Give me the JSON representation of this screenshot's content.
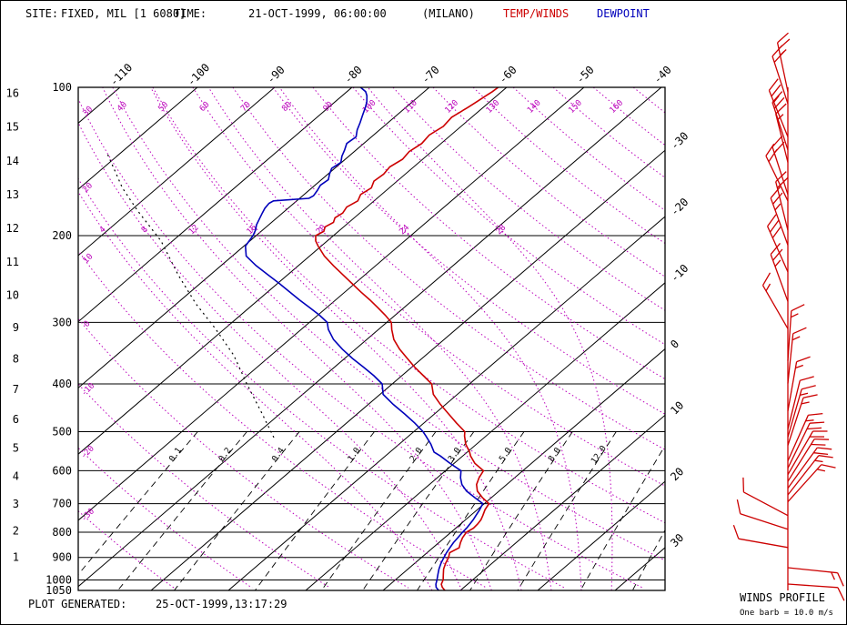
{
  "header": {
    "site_label": "SITE:",
    "site_value": "FIXED, MIL [1 6080]",
    "time_label": "TIME:",
    "time_value": "21-OCT-1999, 06:00:00",
    "station": "(MILANO)",
    "temp_legend": "TEMP/WINDS",
    "dew_legend": "DEWPOINT"
  },
  "footer": {
    "generated_label": "PLOT GENERATED:",
    "generated_value": "25-OCT-1999,13:17:29"
  },
  "wind_panel": {
    "title": "WINDS PROFILE",
    "legend": "One barb = 10.0 m/s"
  },
  "colors": {
    "temp": "#cc0000",
    "dew": "#0000bb",
    "adiabat": "#bb00bb",
    "grid": "#000000"
  },
  "chart_data": {
    "type": "skewt",
    "pressure_range": [
      100,
      1050
    ],
    "pressure_lines": [
      100,
      200,
      300,
      400,
      500,
      600,
      700,
      800,
      900,
      1000,
      1050
    ],
    "height_scale": [
      [
        16,
        102.9
      ],
      [
        15,
        120.4
      ],
      [
        14,
        141.0
      ],
      [
        13,
        165.1
      ],
      [
        12,
        193.3
      ],
      [
        11,
        226.3
      ],
      [
        10,
        264.4
      ],
      [
        9,
        307.4
      ],
      [
        8,
        356.0
      ],
      [
        7,
        410.6
      ],
      [
        6,
        471.8
      ],
      [
        5,
        540.2
      ],
      [
        4,
        616.4
      ],
      [
        3,
        701.1
      ],
      [
        2,
        795.0
      ],
      [
        1,
        898.7
      ]
    ],
    "isotherm_range": [
      -120,
      40
    ],
    "isotherm_step": 10,
    "top_temp_labels": [
      -110,
      -100,
      -90,
      -80,
      -70,
      -60,
      -50,
      -40
    ],
    "right_temp_labels": [
      -30,
      -20,
      -10,
      0,
      10,
      20,
      30
    ],
    "dry_adiabats_c": [
      -30,
      -20,
      -10,
      0,
      10,
      20,
      30,
      40,
      50,
      60,
      70,
      80,
      90,
      100,
      110,
      120,
      130,
      140,
      150,
      160,
      170
    ],
    "moist_adiabats_c": [
      4,
      8,
      12,
      16,
      20,
      24,
      28
    ],
    "mixing_ratio_lines_gkg": [
      0.1,
      0.2,
      0.4,
      1,
      2,
      3,
      5,
      8,
      12,
      20,
      30
    ],
    "mixing_ratio_labels_gkg": [
      0.1,
      0.2,
      0.4,
      1,
      2,
      3,
      5,
      8,
      12
    ],
    "temperature_profile": [
      [
        1050,
        8.0
      ],
      [
        1035,
        7.2
      ],
      [
        1020,
        6.6
      ],
      [
        1000,
        6.2
      ],
      [
        975,
        5.4
      ],
      [
        950,
        4.6
      ],
      [
        925,
        4.0
      ],
      [
        900,
        3.5
      ],
      [
        880,
        2.9
      ],
      [
        860,
        3.4
      ],
      [
        840,
        2.8
      ],
      [
        820,
        2.3
      ],
      [
        800,
        2.0
      ],
      [
        785,
        2.3
      ],
      [
        770,
        2.2
      ],
      [
        755,
        2.0
      ],
      [
        740,
        1.6
      ],
      [
        720,
        1.0
      ],
      [
        700,
        0.6
      ],
      [
        680,
        -1.2
      ],
      [
        660,
        -2.8
      ],
      [
        640,
        -3.9
      ],
      [
        620,
        -4.6
      ],
      [
        600,
        -5.1
      ],
      [
        580,
        -7.3
      ],
      [
        560,
        -9.0
      ],
      [
        550,
        -9.7
      ],
      [
        530,
        -11.4
      ],
      [
        510,
        -12.8
      ],
      [
        500,
        -13.4
      ],
      [
        480,
        -15.8
      ],
      [
        460,
        -18.2
      ],
      [
        440,
        -20.7
      ],
      [
        420,
        -23.1
      ],
      [
        400,
        -24.9
      ],
      [
        385,
        -27.2
      ],
      [
        370,
        -29.6
      ],
      [
        355,
        -31.9
      ],
      [
        340,
        -34.3
      ],
      [
        325,
        -36.5
      ],
      [
        310,
        -38.3
      ],
      [
        300,
        -39.4
      ],
      [
        290,
        -41.3
      ],
      [
        280,
        -43.4
      ],
      [
        270,
        -45.6
      ],
      [
        260,
        -48.0
      ],
      [
        250,
        -50.4
      ],
      [
        240,
        -52.9
      ],
      [
        230,
        -55.5
      ],
      [
        220,
        -58.1
      ],
      [
        210,
        -60.4
      ],
      [
        205,
        -61.5
      ],
      [
        200,
        -62.3
      ],
      [
        196,
        -61.9
      ],
      [
        192,
        -62.4
      ],
      [
        188,
        -62.0
      ],
      [
        184,
        -62.5
      ],
      [
        180,
        -62.2
      ],
      [
        175,
        -62.6
      ],
      [
        170,
        -62.1
      ],
      [
        165,
        -62.7
      ],
      [
        160,
        -62.3
      ],
      [
        155,
        -63.0
      ],
      [
        150,
        -62.8
      ],
      [
        145,
        -63.1
      ],
      [
        140,
        -62.6
      ],
      [
        135,
        -62.9
      ],
      [
        130,
        -62.5
      ],
      [
        125,
        -62.8
      ],
      [
        120,
        -62.3
      ],
      [
        115,
        -62.6
      ],
      [
        110,
        -62.0
      ],
      [
        107,
        -61.7
      ],
      [
        104,
        -61.4
      ],
      [
        102,
        -61.2
      ],
      [
        100,
        -61.1
      ]
    ],
    "dewpoint_profile": [
      [
        1050,
        7.2
      ],
      [
        1035,
        6.4
      ],
      [
        1020,
        5.9
      ],
      [
        1000,
        5.4
      ],
      [
        975,
        4.7
      ],
      [
        950,
        4.0
      ],
      [
        925,
        3.4
      ],
      [
        900,
        2.9
      ],
      [
        880,
        2.5
      ],
      [
        860,
        2.2
      ],
      [
        840,
        1.9
      ],
      [
        820,
        1.7
      ],
      [
        800,
        1.5
      ],
      [
        785,
        1.4
      ],
      [
        770,
        1.2
      ],
      [
        755,
        1.0
      ],
      [
        740,
        0.7
      ],
      [
        720,
        0.3
      ],
      [
        700,
        -0.2
      ],
      [
        680,
        -2.2
      ],
      [
        660,
        -4.2
      ],
      [
        640,
        -5.8
      ],
      [
        620,
        -7.0
      ],
      [
        600,
        -8.0
      ],
      [
        580,
        -10.5
      ],
      [
        560,
        -12.9
      ],
      [
        550,
        -14.3
      ],
      [
        530,
        -15.9
      ],
      [
        510,
        -17.8
      ],
      [
        500,
        -18.8
      ],
      [
        480,
        -21.2
      ],
      [
        460,
        -23.9
      ],
      [
        440,
        -26.8
      ],
      [
        420,
        -29.6
      ],
      [
        400,
        -31.3
      ],
      [
        385,
        -33.6
      ],
      [
        370,
        -36.2
      ],
      [
        355,
        -39.0
      ],
      [
        340,
        -41.7
      ],
      [
        325,
        -44.3
      ],
      [
        310,
        -46.5
      ],
      [
        300,
        -47.7
      ],
      [
        290,
        -49.8
      ],
      [
        280,
        -52.2
      ],
      [
        270,
        -54.7
      ],
      [
        260,
        -57.2
      ],
      [
        250,
        -59.8
      ],
      [
        240,
        -62.6
      ],
      [
        230,
        -65.5
      ],
      [
        220,
        -68.2
      ],
      [
        210,
        -69.8
      ],
      [
        200,
        -70.4
      ],
      [
        195,
        -70.9
      ],
      [
        190,
        -71.6
      ],
      [
        185,
        -72.1
      ],
      [
        180,
        -72.6
      ],
      [
        176,
        -73.0
      ],
      [
        172,
        -73.2
      ],
      [
        170,
        -73.0
      ],
      [
        168,
        -68.8
      ],
      [
        166,
        -68.6
      ],
      [
        162,
        -68.9
      ],
      [
        158,
        -69.3
      ],
      [
        154,
        -69.1
      ],
      [
        150,
        -69.8
      ],
      [
        146,
        -70.4
      ],
      [
        142,
        -70.1
      ],
      [
        138,
        -70.9
      ],
      [
        134,
        -71.5
      ],
      [
        130,
        -72.2
      ],
      [
        126,
        -72.0
      ],
      [
        122,
        -72.9
      ],
      [
        118,
        -73.6
      ],
      [
        114,
        -74.4
      ],
      [
        110,
        -75.2
      ],
      [
        107,
        -75.9
      ],
      [
        104,
        -76.8
      ],
      [
        102,
        -77.6
      ],
      [
        100,
        -78.9
      ]
    ],
    "reference_curve": [
      [
        137,
        -101.4
      ],
      [
        160,
        -94.5
      ],
      [
        178,
        -89.1
      ],
      [
        205,
        -81.5
      ],
      [
        240,
        -74.2
      ],
      [
        275,
        -67.5
      ],
      [
        309,
        -61.2
      ],
      [
        350,
        -54.8
      ],
      [
        400,
        -48.8
      ],
      [
        455,
        -42.8
      ],
      [
        515,
        -37.1
      ]
    ],
    "wind_barbs": [
      [
        102,
        -12,
        25
      ],
      [
        108,
        -18,
        20
      ],
      [
        126,
        -22,
        25
      ],
      [
        134,
        -18,
        20
      ],
      [
        142,
        -14,
        15
      ],
      [
        165,
        -18,
        20
      ],
      [
        170,
        -26,
        20
      ],
      [
        195,
        -14,
        20
      ],
      [
        209,
        -20,
        25
      ],
      [
        237,
        -24,
        30
      ],
      [
        272,
        -20,
        25
      ],
      [
        309,
        -30,
        15
      ],
      [
        359,
        4,
        15
      ],
      [
        399,
        6,
        15
      ],
      [
        454,
        10,
        15
      ],
      [
        494,
        14,
        10
      ],
      [
        513,
        16,
        15
      ],
      [
        533,
        18,
        15
      ],
      [
        573,
        24,
        15
      ],
      [
        593,
        26,
        20
      ],
      [
        611,
        30,
        20
      ],
      [
        631,
        32,
        20
      ],
      [
        651,
        36,
        20
      ],
      [
        672,
        38,
        15
      ],
      [
        694,
        42,
        15
      ],
      [
        740,
        -62,
        10
      ],
      [
        789,
        -72,
        10
      ],
      [
        859,
        -80,
        10
      ],
      [
        944,
        96,
        15
      ],
      [
        1019,
        94,
        10
      ]
    ],
    "barb_full_value_ms": 10
  }
}
